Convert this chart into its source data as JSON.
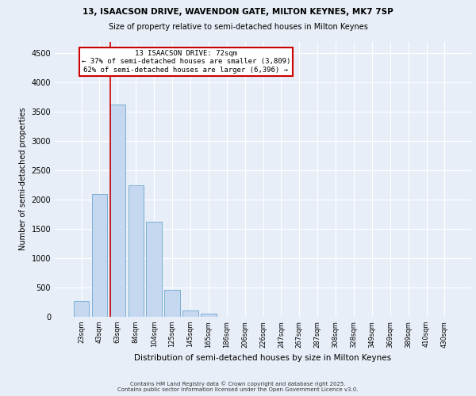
{
  "title_line1": "13, ISAACSON DRIVE, WAVENDON GATE, MILTON KEYNES, MK7 7SP",
  "title_line2": "Size of property relative to semi-detached houses in Milton Keynes",
  "xlabel": "Distribution of semi-detached houses by size in Milton Keynes",
  "ylabel": "Number of semi-detached properties",
  "categories": [
    "23sqm",
    "43sqm",
    "63sqm",
    "84sqm",
    "104sqm",
    "125sqm",
    "145sqm",
    "165sqm",
    "186sqm",
    "206sqm",
    "226sqm",
    "247sqm",
    "267sqm",
    "287sqm",
    "308sqm",
    "328sqm",
    "349sqm",
    "369sqm",
    "389sqm",
    "410sqm",
    "430sqm"
  ],
  "values": [
    270,
    2100,
    3620,
    2250,
    1620,
    460,
    110,
    60,
    0,
    0,
    0,
    0,
    0,
    0,
    0,
    0,
    0,
    0,
    0,
    0,
    0
  ],
  "bar_color": "#c5d8f0",
  "bar_edge_color": "#7bafd4",
  "vline_color": "#cc0000",
  "vline_pos": 1.575,
  "annotation_text": "13 ISAACSON DRIVE: 72sqm\n← 37% of semi-detached houses are smaller (3,809)\n62% of semi-detached houses are larger (6,396) →",
  "annotation_box_color": "#ffffff",
  "annotation_box_edge_color": "#cc0000",
  "ylim": [
    0,
    4700
  ],
  "yticks": [
    0,
    500,
    1000,
    1500,
    2000,
    2500,
    3000,
    3500,
    4000,
    4500
  ],
  "bg_color": "#e8eef7",
  "plot_bg_color": "#e8eef7",
  "footer_text": "Contains HM Land Registry data © Crown copyright and database right 2025.\nContains public sector information licensed under the Open Government Licence v3.0.",
  "fig_width": 6.0,
  "fig_height": 5.0,
  "title1_fontsize": 7.5,
  "title2_fontsize": 7.0,
  "xlabel_fontsize": 7.5,
  "ylabel_fontsize": 7.0,
  "xtick_fontsize": 6.0,
  "ytick_fontsize": 7.0,
  "annot_fontsize": 6.5,
  "footer_fontsize": 5.0
}
